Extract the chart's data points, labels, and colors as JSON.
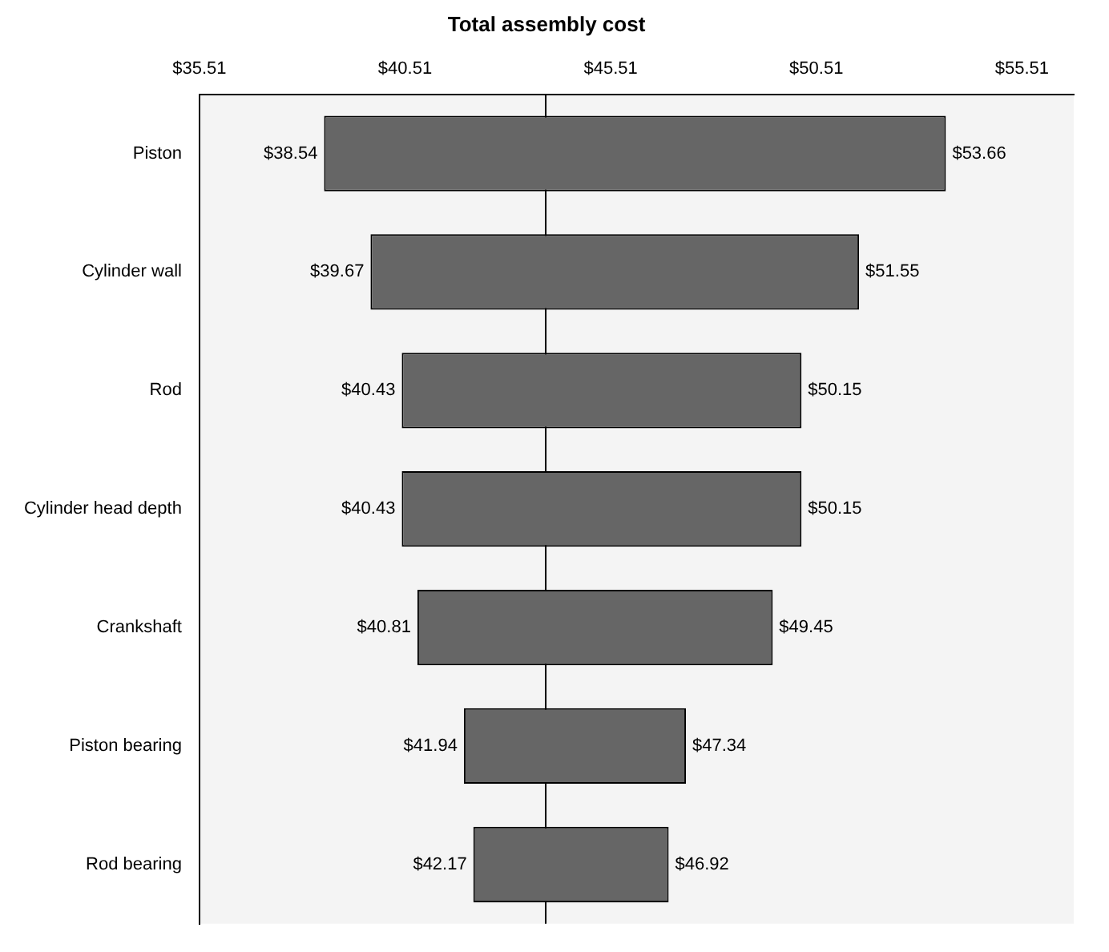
{
  "chart_data": {
    "type": "bar",
    "orientation": "horizontal",
    "title": "Total assembly cost",
    "categories": [
      "Piston",
      "Cylinder wall",
      "Rod",
      "Cylinder head depth",
      "Crankshaft",
      "Piston bearing",
      "Rod bearing"
    ],
    "base": [
      38.54,
      39.67,
      40.43,
      40.43,
      40.81,
      41.94,
      42.17
    ],
    "values": [
      15.12,
      11.88,
      9.72,
      9.72,
      8.64,
      5.4,
      4.75
    ],
    "color": "#666666",
    "xlim": [
      35.51,
      56.77
    ],
    "xticks": [
      {
        "value": 35.51,
        "label": "$35.51"
      },
      {
        "value": 40.51,
        "label": "$40.51"
      },
      {
        "value": 45.51,
        "label": "$45.51"
      },
      {
        "value": 50.51,
        "label": "$50.51"
      },
      {
        "value": 55.51,
        "label": "$55.51"
      }
    ],
    "ref_lines": [
      {
        "axis": "x",
        "value": 43.93
      }
    ],
    "grid": false,
    "annotations": [
      {
        "text": "$38.54",
        "x": 38.54,
        "y": "Piston"
      },
      {
        "text": "$53.66",
        "x": 53.66,
        "y": "Piston"
      },
      {
        "text": "$39.67",
        "x": 39.67,
        "y": "Cylinder wall"
      },
      {
        "text": "$51.55",
        "x": 51.55,
        "y": "Cylinder wall"
      },
      {
        "text": "$40.43",
        "x": 40.43,
        "y": "Rod"
      },
      {
        "text": "$50.15",
        "x": 50.15,
        "y": "Rod"
      },
      {
        "text": "$40.43",
        "x": 40.43,
        "y": "Cylinder head depth"
      },
      {
        "text": "$50.15",
        "x": 50.15,
        "y": "Cylinder head depth"
      },
      {
        "text": "$40.81",
        "x": 40.81,
        "y": "Crankshaft"
      },
      {
        "text": "$49.45",
        "x": 49.45,
        "y": "Crankshaft"
      },
      {
        "text": "$41.94",
        "x": 41.94,
        "y": "Piston bearing"
      },
      {
        "text": "$47.34",
        "x": 47.34,
        "y": "Piston bearing"
      },
      {
        "text": "$42.17",
        "x": 42.17,
        "y": "Rod bearing"
      },
      {
        "text": "$46.92",
        "x": 46.92,
        "y": "Rod bearing"
      }
    ]
  }
}
